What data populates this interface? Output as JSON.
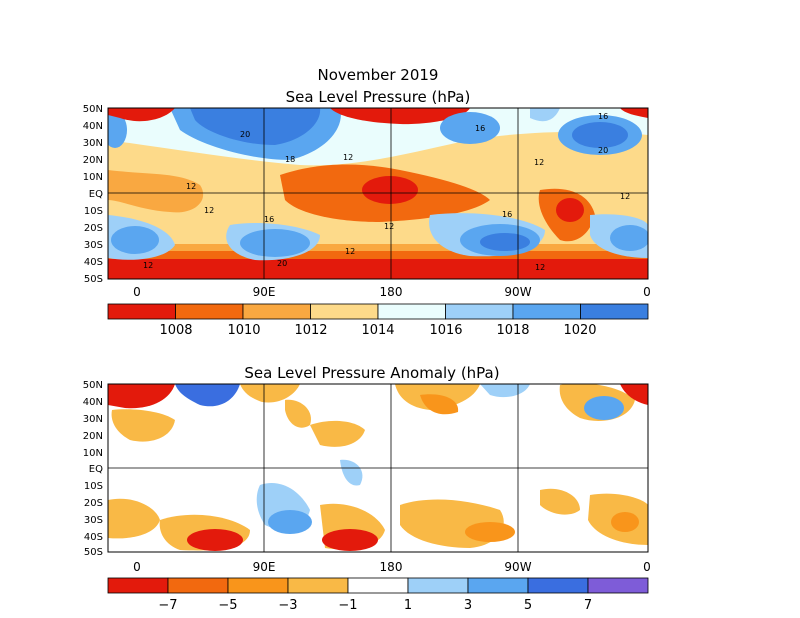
{
  "top_panel": {
    "title_line1": "November 2019",
    "title_line2": "Sea Level Pressure (hPa)",
    "lat_labels": [
      "50N",
      "40N",
      "30N",
      "20N",
      "10N",
      "EQ",
      "10S",
      "20S",
      "30S",
      "40S",
      "50S"
    ],
    "lon_labels": [
      "0",
      "90E",
      "180",
      "90W",
      "0"
    ],
    "colorbar": {
      "labels": [
        "1008",
        "1010",
        "1012",
        "1014",
        "1016",
        "1018",
        "1020"
      ],
      "colors": [
        "#e31a0c",
        "#f2690f",
        "#f9a841",
        "#fdda8a",
        "#eafdfd",
        "#9ed0f8",
        "#5aa6f0",
        "#3a7fe0"
      ]
    },
    "contour_labels": [
      "16",
      "20",
      "16",
      "16",
      "20",
      "18",
      "12",
      "12",
      "12",
      "12",
      "12",
      "16",
      "16",
      "12",
      "12",
      "12",
      "20",
      "12",
      "12"
    ]
  },
  "bottom_panel": {
    "title": "Sea Level Pressure Anomaly (hPa)",
    "lat_labels": [
      "50N",
      "40N",
      "30N",
      "20N",
      "10N",
      "EQ",
      "10S",
      "20S",
      "30S",
      "40S",
      "50S"
    ],
    "lon_labels": [
      "0",
      "90E",
      "180",
      "90W",
      "0"
    ],
    "colorbar": {
      "labels": [
        "−7",
        "−5",
        "−3",
        "−1",
        "1",
        "3",
        "5",
        "7"
      ],
      "colors": [
        "#e31a0c",
        "#f2690f",
        "#f9951b",
        "#f9b946",
        "#ffffff",
        "#9ed0f8",
        "#5aa6f0",
        "#3a6ee0",
        "#7e5cd8"
      ]
    }
  }
}
